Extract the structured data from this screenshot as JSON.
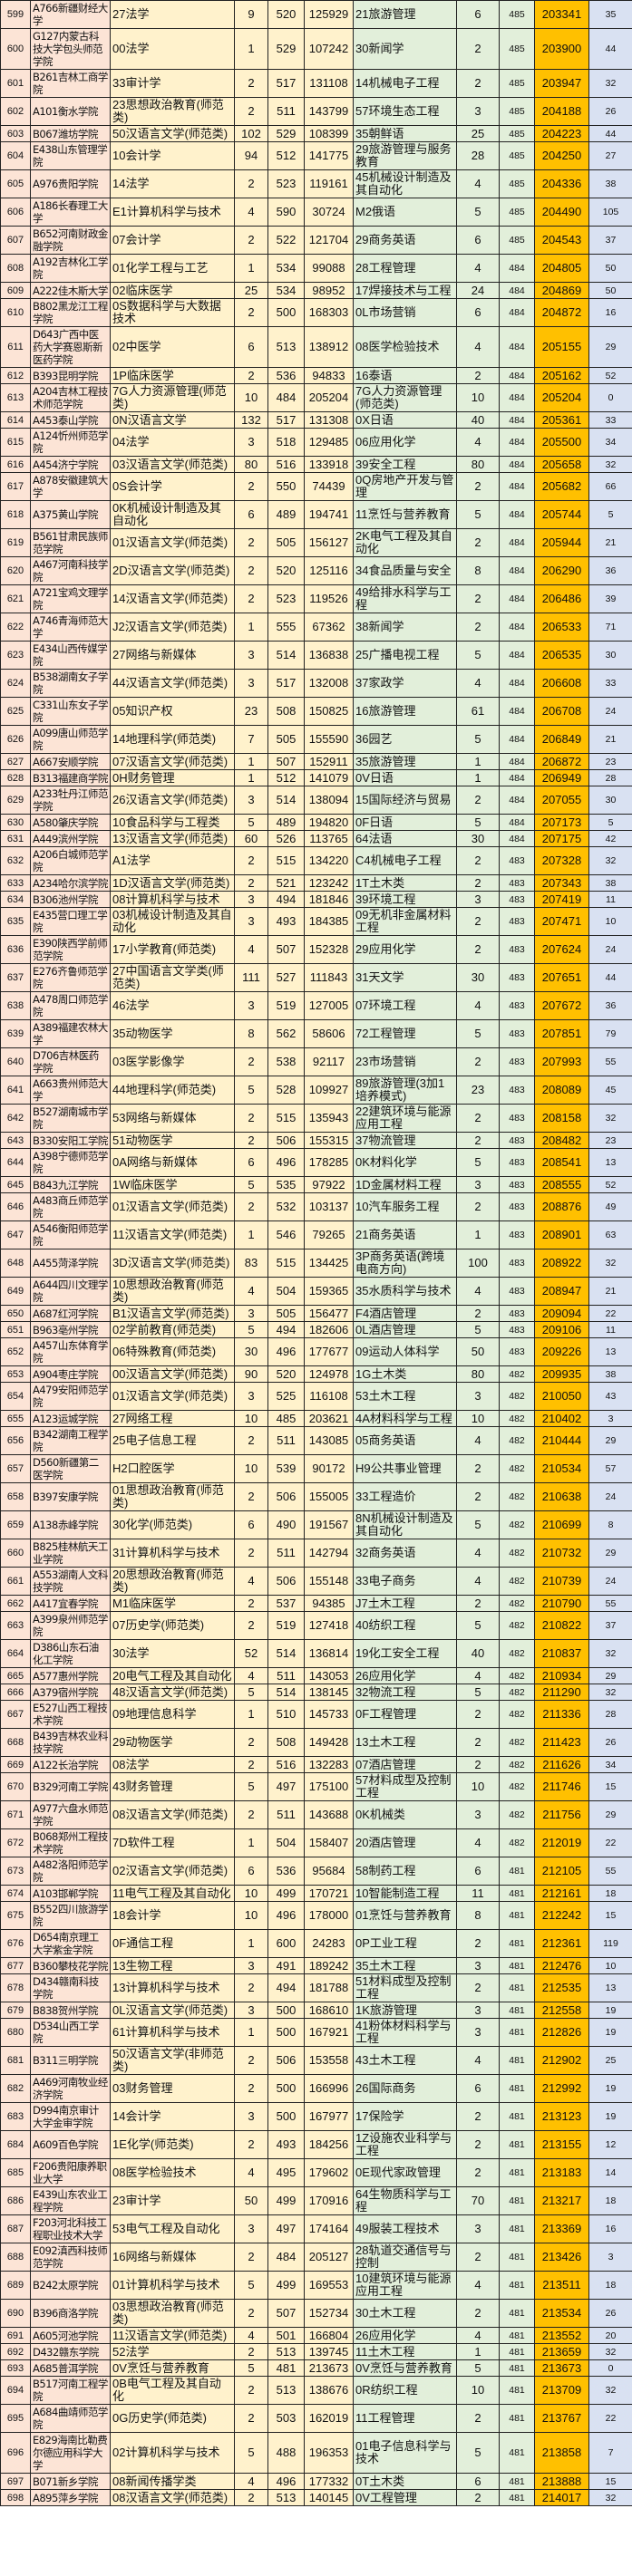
{
  "colors": {
    "school": "#fce4d6",
    "major1": "#fff2cc",
    "major2": "#e2efda",
    "rank2": "#ffc000",
    "diff": "#d9e1f2"
  },
  "rows": [
    [
      "599",
      "A766新疆财经大学",
      "27法学",
      "9",
      "520",
      "125929",
      "21旅游管理",
      "6",
      "485",
      "203341",
      "35"
    ],
    [
      "600",
      "G127内蒙古科技大学包头师范学院",
      "00法学",
      "1",
      "529",
      "107242",
      "30新闻学",
      "2",
      "485",
      "203900",
      "44"
    ],
    [
      "601",
      "B261吉林工商学院",
      "33审计学",
      "2",
      "517",
      "131108",
      "14机械电子工程",
      "2",
      "485",
      "203947",
      "32"
    ],
    [
      "602",
      "A101衡水学院",
      "23思想政治教育(师范类)",
      "2",
      "511",
      "143799",
      "57环境生态工程",
      "3",
      "485",
      "204188",
      "26"
    ],
    [
      "603",
      "B067潍坊学院",
      "50汉语言文学(师范类)",
      "102",
      "529",
      "108399",
      "35朝鲜语",
      "25",
      "485",
      "204223",
      "44"
    ],
    [
      "604",
      "E438山东管理学院",
      "10会计学",
      "94",
      "512",
      "141775",
      "29旅游管理与服务教育",
      "28",
      "485",
      "204250",
      "27"
    ],
    [
      "605",
      "A976贵阳学院",
      "14法学",
      "2",
      "523",
      "119161",
      "45机械设计制造及其自动化",
      "4",
      "485",
      "204336",
      "38"
    ],
    [
      "606",
      "A186长春理工大学",
      "E1计算机科学与技术",
      "4",
      "590",
      "30724",
      "M2俄语",
      "5",
      "485",
      "204490",
      "105"
    ],
    [
      "607",
      "B652河南财政金融学院",
      "07会计学",
      "2",
      "522",
      "121704",
      "29商务英语",
      "6",
      "485",
      "204543",
      "37"
    ],
    [
      "608",
      "A192吉林化工学院",
      "01化学工程与工艺",
      "1",
      "534",
      "99088",
      "28工程管理",
      "4",
      "484",
      "204805",
      "50"
    ],
    [
      "609",
      "A222佳木斯大学",
      "02临床医学",
      "25",
      "534",
      "98952",
      "17焊接技术与工程",
      "24",
      "484",
      "204869",
      "50"
    ],
    [
      "610",
      "B802黑龙江工程学院",
      "0S数据科学与大数据技术",
      "2",
      "500",
      "168303",
      "0L市场营销",
      "6",
      "484",
      "204872",
      "16"
    ],
    [
      "611",
      "D643广西中医药大学赛恩斯新医药学院",
      "02中医学",
      "6",
      "513",
      "138912",
      "08医学检验技术",
      "4",
      "484",
      "205155",
      "29"
    ],
    [
      "612",
      "B393昆明学院",
      "1P临床医学",
      "2",
      "536",
      "94833",
      "16泰语",
      "2",
      "484",
      "205162",
      "52"
    ],
    [
      "613",
      "A204吉林工程技术师范学院",
      "7G人力资源管理(师范类)",
      "10",
      "484",
      "205204",
      "7G人力资源管理(师范类)",
      "10",
      "484",
      "205204",
      "0"
    ],
    [
      "614",
      "A453泰山学院",
      "0N汉语言文学",
      "132",
      "517",
      "131308",
      "0X日语",
      "40",
      "484",
      "205361",
      "33"
    ],
    [
      "615",
      "A124忻州师范学院",
      "04法学",
      "3",
      "518",
      "129485",
      "06应用化学",
      "4",
      "484",
      "205500",
      "34"
    ],
    [
      "616",
      "A454济宁学院",
      "03汉语言文学(师范类)",
      "80",
      "516",
      "133918",
      "39安全工程",
      "80",
      "484",
      "205658",
      "32"
    ],
    [
      "617",
      "A878安徽建筑大学",
      "0S会计学",
      "2",
      "550",
      "74439",
      "0Q房地产开发与管理",
      "2",
      "484",
      "205682",
      "66"
    ],
    [
      "618",
      "A375黄山学院",
      "0K机械设计制造及其自动化",
      "6",
      "489",
      "194741",
      "11烹饪与营养教育",
      "5",
      "484",
      "205744",
      "5"
    ],
    [
      "619",
      "B561甘肃民族师范学院",
      "01汉语言文学(师范类)",
      "2",
      "505",
      "156127",
      "2K电气工程及其自动化",
      "2",
      "484",
      "205944",
      "21"
    ],
    [
      "620",
      "A467河南科技学院",
      "2D汉语言文学(师范类)",
      "2",
      "520",
      "125116",
      "34食品质量与安全",
      "8",
      "484",
      "206290",
      "36"
    ],
    [
      "621",
      "A721宝鸡文理学院",
      "14汉语言文学(师范类)",
      "2",
      "523",
      "119526",
      "49给排水科学与工程",
      "2",
      "484",
      "206486",
      "39"
    ],
    [
      "622",
      "A746青海师范大学",
      "J2汉语言文学(师范类)",
      "1",
      "555",
      "67362",
      "38新闻学",
      "2",
      "484",
      "206533",
      "71"
    ],
    [
      "623",
      "E434山西传媒学院",
      "27网络与新媒体",
      "3",
      "514",
      "136838",
      "25广播电视工程",
      "5",
      "484",
      "206535",
      "30"
    ],
    [
      "624",
      "B538湖南女子学院",
      "44汉语言文学(师范类)",
      "3",
      "517",
      "132008",
      "37家政学",
      "4",
      "484",
      "206608",
      "33"
    ],
    [
      "625",
      "C331山东女子学院",
      "05知识产权",
      "23",
      "508",
      "150825",
      "16旅游管理",
      "61",
      "484",
      "206708",
      "24"
    ],
    [
      "626",
      "A099唐山师范学院",
      "14地理科学(师范类)",
      "7",
      "505",
      "155590",
      "36园艺",
      "5",
      "484",
      "206849",
      "21"
    ],
    [
      "627",
      "A667安顺学院",
      "07汉语言文学(师范类)",
      "1",
      "507",
      "152911",
      "35旅游管理",
      "1",
      "484",
      "206872",
      "23"
    ],
    [
      "628",
      "B313福建商学院",
      "0H财务管理",
      "1",
      "512",
      "141079",
      "0V日语",
      "1",
      "484",
      "206949",
      "28"
    ],
    [
      "629",
      "A233牡丹江师范学院",
      "26汉语言文学(师范类)",
      "3",
      "514",
      "138094",
      "15国际经济与贸易",
      "2",
      "484",
      "207055",
      "30"
    ],
    [
      "630",
      "A580肇庆学院",
      "10食品科学与工程类",
      "5",
      "489",
      "194820",
      "0F日语",
      "5",
      "484",
      "207173",
      "5"
    ],
    [
      "631",
      "A449滨州学院",
      "13汉语言文学(师范类)",
      "60",
      "526",
      "113765",
      "64法语",
      "30",
      "484",
      "207175",
      "42"
    ],
    [
      "632",
      "A206白城师范学院",
      "A1法学",
      "2",
      "515",
      "134220",
      "C4机械电子工程",
      "2",
      "483",
      "207328",
      "32"
    ],
    [
      "633",
      "A234哈尔滨学院",
      "1D汉语言文学(师范类)",
      "2",
      "521",
      "123242",
      "1T土木类",
      "2",
      "483",
      "207343",
      "38"
    ],
    [
      "634",
      "B306池州学院",
      "08计算机科学与技术",
      "3",
      "494",
      "181846",
      "39环境工程",
      "3",
      "483",
      "207419",
      "11"
    ],
    [
      "635",
      "E435营口理工学院",
      "03机械设计制造及其自动化",
      "3",
      "493",
      "184385",
      "09无机非金属材料工程",
      "2",
      "483",
      "207471",
      "10"
    ],
    [
      "636",
      "E390陕西学前师范学院",
      "17小学教育(师范类)",
      "4",
      "507",
      "152328",
      "29应用化学",
      "2",
      "483",
      "207624",
      "24"
    ],
    [
      "637",
      "E276齐鲁师范学院",
      "27中国语言文学类(师范类)",
      "111",
      "527",
      "111843",
      "31天文学",
      "30",
      "483",
      "207651",
      "44"
    ],
    [
      "638",
      "A478周口师范学院",
      "46法学",
      "3",
      "519",
      "127005",
      "07环境工程",
      "4",
      "483",
      "207672",
      "36"
    ],
    [
      "639",
      "A389福建农林大学",
      "35动物医学",
      "8",
      "562",
      "58606",
      "72工程管理",
      "5",
      "483",
      "207851",
      "79"
    ],
    [
      "640",
      "D706吉林医药学院",
      "03医学影像学",
      "2",
      "538",
      "92117",
      "23市场营销",
      "2",
      "483",
      "207993",
      "55"
    ],
    [
      "641",
      "A663贵州师范大学",
      "44地理科学(师范类)",
      "5",
      "528",
      "109927",
      "89旅游管理(3加1培养模式)",
      "23",
      "483",
      "208089",
      "45"
    ],
    [
      "642",
      "B527湖南城市学院",
      "53网络与新媒体",
      "2",
      "515",
      "135943",
      "22建筑环境与能源应用工程",
      "2",
      "483",
      "208158",
      "32"
    ],
    [
      "643",
      "B330安阳工学院",
      "51动物医学",
      "2",
      "506",
      "155315",
      "37物流管理",
      "2",
      "483",
      "208482",
      "23"
    ],
    [
      "644",
      "A398宁德师范学院",
      "0A网络与新媒体",
      "6",
      "496",
      "178285",
      "0K材料化学",
      "5",
      "483",
      "208541",
      "13"
    ],
    [
      "645",
      "B843九江学院",
      "1W临床医学",
      "5",
      "535",
      "97922",
      "1D金属材料工程",
      "3",
      "483",
      "208555",
      "52"
    ],
    [
      "646",
      "A483商丘师范学院",
      "01汉语言文学(师范类)",
      "2",
      "532",
      "103137",
      "10汽车服务工程",
      "2",
      "483",
      "208876",
      "49"
    ],
    [
      "647",
      "A546衡阳师范学院",
      "11汉语言文学(师范类)",
      "1",
      "546",
      "79265",
      "21商务英语",
      "1",
      "483",
      "208901",
      "63"
    ],
    [
      "648",
      "A455菏泽学院",
      "3D汉语言文学(师范类)",
      "83",
      "515",
      "134425",
      "3P商务英语(跨境电商方向)",
      "100",
      "483",
      "208922",
      "32"
    ],
    [
      "649",
      "A644四川文理学院",
      "10思想政治教育(师范类)",
      "4",
      "504",
      "159365",
      "35水质科学与技术",
      "4",
      "483",
      "208947",
      "21"
    ],
    [
      "650",
      "A687红河学院",
      "B1汉语言文学(师范类)",
      "3",
      "505",
      "156477",
      "F4酒店管理",
      "2",
      "483",
      "209094",
      "22"
    ],
    [
      "651",
      "B963亳州学院",
      "02学前教育(师范类)",
      "5",
      "494",
      "182606",
      "0L酒店管理",
      "5",
      "483",
      "209106",
      "11"
    ],
    [
      "652",
      "A457山东体育学院",
      "06特殊教育(师范类)",
      "30",
      "496",
      "177677",
      "09运动人体科学",
      "50",
      "483",
      "209226",
      "13"
    ],
    [
      "653",
      "A904枣庄学院",
      "00汉语言文学(师范类)",
      "90",
      "520",
      "124978",
      "1G土木类",
      "80",
      "482",
      "209935",
      "38"
    ],
    [
      "654",
      "A479安阳师范学院",
      "01汉语言文学(师范类)",
      "3",
      "525",
      "116108",
      "53土木工程",
      "3",
      "482",
      "210050",
      "43"
    ],
    [
      "655",
      "A123运城学院",
      "27网络工程",
      "10",
      "485",
      "203621",
      "4A材料科学与工程",
      "10",
      "482",
      "210402",
      "3"
    ],
    [
      "656",
      "B342湖南工程学院",
      "25电子信息工程",
      "2",
      "511",
      "143085",
      "05商务英语",
      "4",
      "482",
      "210444",
      "29"
    ],
    [
      "657",
      "D560新疆第二医学院",
      "H2口腔医学",
      "10",
      "539",
      "90172",
      "H9公共事业管理",
      "2",
      "482",
      "210534",
      "57"
    ],
    [
      "658",
      "B397安康学院",
      "01思想政治教育(师范类)",
      "2",
      "506",
      "155005",
      "33工程造价",
      "2",
      "482",
      "210638",
      "24"
    ],
    [
      "659",
      "A138赤峰学院",
      "30化学(师范类)",
      "6",
      "490",
      "191567",
      "8N机械设计制造及其自动化",
      "5",
      "482",
      "210699",
      "8"
    ],
    [
      "660",
      "B825桂林航天工业学院",
      "31计算机科学与技术",
      "2",
      "511",
      "142794",
      "32商务英语",
      "4",
      "482",
      "210732",
      "29"
    ],
    [
      "661",
      "A553湖南人文科技学院",
      "20思想政治教育(师范类)",
      "4",
      "506",
      "155148",
      "33电子商务",
      "4",
      "482",
      "210739",
      "24"
    ],
    [
      "662",
      "A417宜春学院",
      "M1临床医学",
      "2",
      "537",
      "94385",
      "J7土木工程",
      "2",
      "482",
      "210790",
      "55"
    ],
    [
      "663",
      "A399泉州师范学院",
      "07历史学(师范类)",
      "2",
      "519",
      "127418",
      "40纺织工程",
      "5",
      "482",
      "210822",
      "37"
    ],
    [
      "664",
      "D386山东石油化工学院",
      "30法学",
      "52",
      "514",
      "136814",
      "19化工安全工程",
      "40",
      "482",
      "210837",
      "32"
    ],
    [
      "665",
      "A577惠州学院",
      "20电气工程及其自动化",
      "4",
      "511",
      "143053",
      "26应用化学",
      "4",
      "482",
      "210934",
      "29"
    ],
    [
      "666",
      "A379宿州学院",
      "48汉语言文学(师范类)",
      "5",
      "514",
      "138145",
      "32物流工程",
      "5",
      "482",
      "211290",
      "32"
    ],
    [
      "667",
      "E527山西工程技术学院",
      "09地理信息科学",
      "1",
      "510",
      "145733",
      "0F工程管理",
      "2",
      "482",
      "211336",
      "28"
    ],
    [
      "668",
      "B439吉林农业科技学院",
      "29动物医学",
      "2",
      "508",
      "149428",
      "13土木工程",
      "2",
      "482",
      "211423",
      "26"
    ],
    [
      "669",
      "A122长治学院",
      "08法学",
      "2",
      "516",
      "132283",
      "07酒店管理",
      "2",
      "482",
      "211626",
      "34"
    ],
    [
      "670",
      "B329河南工学院",
      "43财务管理",
      "5",
      "497",
      "175100",
      "57材料成型及控制工程",
      "10",
      "482",
      "211746",
      "15"
    ],
    [
      "671",
      "A977六盘水师范学院",
      "08汉语言文学(师范类)",
      "2",
      "511",
      "143688",
      "0K机械类",
      "3",
      "482",
      "211756",
      "29"
    ],
    [
      "672",
      "B068郑州工程技术学院",
      "7D软件工程",
      "1",
      "504",
      "158407",
      "20酒店管理",
      "4",
      "482",
      "212019",
      "22"
    ],
    [
      "673",
      "A482洛阳师范学院",
      "02汉语言文学(师范类)",
      "6",
      "536",
      "95684",
      "58制药工程",
      "6",
      "481",
      "212105",
      "55"
    ],
    [
      "674",
      "A103邯郸学院",
      "11电气工程及其自动化",
      "10",
      "499",
      "170721",
      "10智能制造工程",
      "11",
      "481",
      "212161",
      "18"
    ],
    [
      "675",
      "B552四川旅游学院",
      "18会计学",
      "10",
      "496",
      "178000",
      "01烹饪与营养教育",
      "8",
      "481",
      "212242",
      "15"
    ],
    [
      "676",
      "D654南京理工大学紫金学院",
      "0F通信工程",
      "1",
      "600",
      "24283",
      "0P工业工程",
      "2",
      "481",
      "212361",
      "119"
    ],
    [
      "677",
      "B360攀枝花学院",
      "13生物工程",
      "3",
      "491",
      "189242",
      "35土木工程",
      "3",
      "481",
      "212476",
      "10"
    ],
    [
      "678",
      "D434赣南科技学院",
      "13计算机科学与技术",
      "2",
      "494",
      "181788",
      "51材料成型及控制工程",
      "2",
      "481",
      "212535",
      "13"
    ],
    [
      "679",
      "B838贺州学院",
      "0L汉语言文学(师范类)",
      "3",
      "500",
      "168610",
      "1K旅游管理",
      "3",
      "481",
      "212558",
      "19"
    ],
    [
      "680",
      "D534山西工学院",
      "61计算机科学与技术",
      "1",
      "500",
      "167921",
      "41粉体材料科学与工程",
      "3",
      "481",
      "212826",
      "19"
    ],
    [
      "681",
      "B311三明学院",
      "50汉语言文学(非师范类)",
      "2",
      "506",
      "153558",
      "43土木工程",
      "4",
      "481",
      "212902",
      "25"
    ],
    [
      "682",
      "A469河南牧业经济学院",
      "03财务管理",
      "2",
      "500",
      "166996",
      "26国际商务",
      "6",
      "481",
      "212992",
      "19"
    ],
    [
      "683",
      "D994南京审计大学金审学院",
      "14会计学",
      "3",
      "500",
      "167977",
      "17保险学",
      "2",
      "481",
      "213123",
      "19"
    ],
    [
      "684",
      "A609百色学院",
      "1E化学(师范类)",
      "2",
      "493",
      "184256",
      "1Z设施农业科学与工程",
      "2",
      "481",
      "213155",
      "12"
    ],
    [
      "685",
      "F206贵阳康养职业大学",
      "08医学检验技术",
      "4",
      "495",
      "179602",
      "0E现代家政管理",
      "2",
      "481",
      "213183",
      "14"
    ],
    [
      "686",
      "E439山东农业工程学院",
      "23审计学",
      "50",
      "499",
      "170916",
      "64生物质科学与工程",
      "70",
      "481",
      "213217",
      "18"
    ],
    [
      "687",
      "F203河北科技工程职业技术大学",
      "53电气工程及自动化",
      "3",
      "497",
      "174164",
      "49服装工程技术",
      "3",
      "481",
      "213369",
      "16"
    ],
    [
      "688",
      "E092滇西科技师范学院",
      "16网络与新媒体",
      "2",
      "484",
      "205127",
      "28轨道交通信号与控制",
      "2",
      "481",
      "213426",
      "3"
    ],
    [
      "689",
      "B242太原学院",
      "01计算机科学与技术",
      "5",
      "499",
      "169553",
      "10建筑环境与能源应用工程",
      "4",
      "481",
      "213511",
      "18"
    ],
    [
      "690",
      "B396商洛学院",
      "03思想政治教育(师范类)",
      "2",
      "507",
      "152734",
      "30土木工程",
      "2",
      "481",
      "213534",
      "26"
    ],
    [
      "691",
      "A605河池学院",
      "11汉语言文学(师范类)",
      "4",
      "501",
      "166804",
      "26应用化学",
      "4",
      "481",
      "213552",
      "20"
    ],
    [
      "692",
      "D432赣东学院",
      "52法学",
      "2",
      "513",
      "139745",
      "11土木工程",
      "1",
      "481",
      "213659",
      "32"
    ],
    [
      "693",
      "A685普洱学院",
      "0V烹饪与营养教育",
      "5",
      "481",
      "213673",
      "0V烹饪与营养教育",
      "5",
      "481",
      "213673",
      "0"
    ],
    [
      "694",
      "B517河南工程学院",
      "0B电气工程及其自动化",
      "2",
      "513",
      "138676",
      "0R纺织工程",
      "10",
      "481",
      "213709",
      "32"
    ],
    [
      "695",
      "A684曲靖师范学院",
      "0G历史学(师范类)",
      "2",
      "503",
      "162019",
      "11工程管理",
      "2",
      "481",
      "213767",
      "22"
    ],
    [
      "696",
      "E829海南比勒费尔德应用科学大学",
      "02计算机科学与技术",
      "5",
      "488",
      "196353",
      "01电子信息科学与技术",
      "5",
      "481",
      "213858",
      "7"
    ],
    [
      "697",
      "B071新乡学院",
      "08新闻传播学类",
      "4",
      "496",
      "177332",
      "0T土木类",
      "6",
      "481",
      "213888",
      "15"
    ],
    [
      "698",
      "A895萍乡学院",
      "08汉语言文学(师范类)",
      "2",
      "513",
      "140145",
      "0V工程管理",
      "2",
      "481",
      "214017",
      "32"
    ]
  ]
}
